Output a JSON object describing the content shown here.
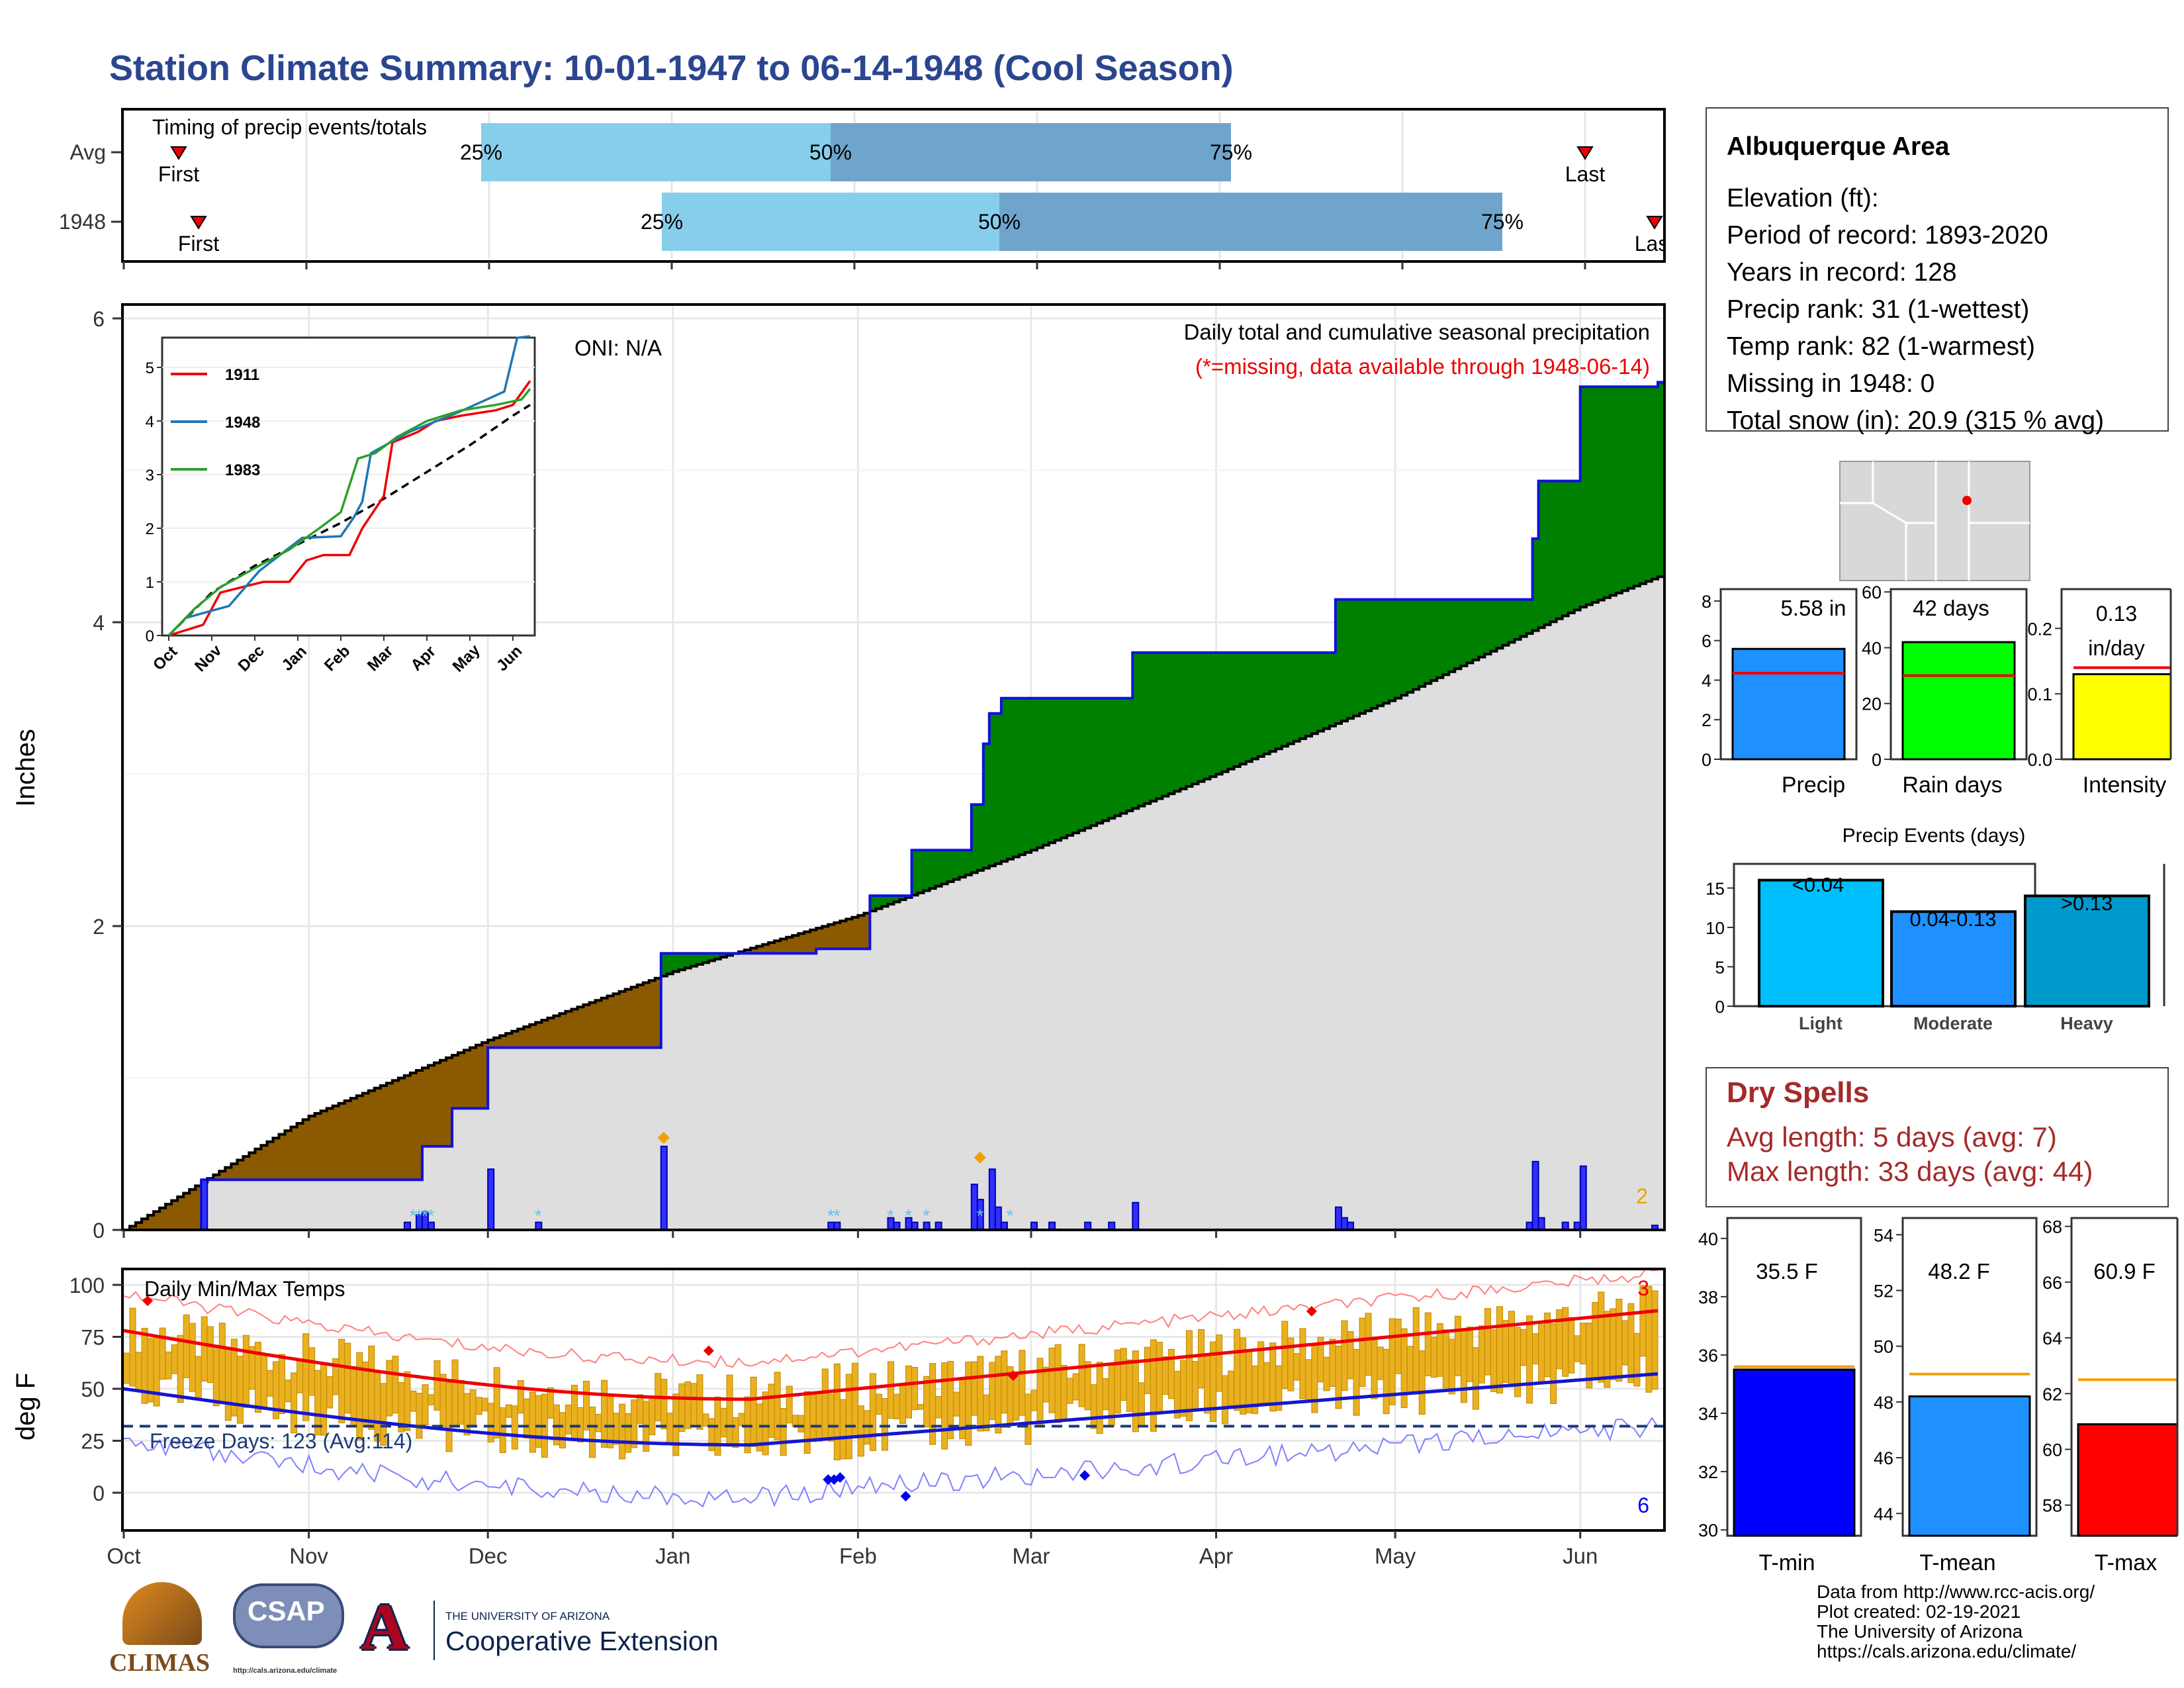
{
  "title": "Station Climate Summary: 10-01-1947 to 06-14-1948 (Cool Season)",
  "colors": {
    "title": "#2b4590",
    "brown": "#8b5a00",
    "green": "#008000",
    "blue": "#1010e0",
    "gray": "#dedede",
    "orange": "#e8a800",
    "red": "#ee0000"
  },
  "timing": {
    "label": "Timing of precip events/totals",
    "rows": [
      {
        "name": "Avg",
        "first": "First",
        "last": "Last",
        "p25": "25%",
        "p50": "50%",
        "p75": "75%"
      },
      {
        "name": "1948",
        "first": "First",
        "last": "Last",
        "p25": "25%",
        "p50": "50%",
        "p75": "75%"
      }
    ]
  },
  "station": {
    "name": "Albuquerque Area",
    "lines": [
      "Elevation (ft):",
      "Period of record: 1893-2020",
      "Years in record: 128",
      "Precip rank: 31 (1-wettest)",
      "Temp rank: 82 (1-warmest)",
      "Missing in 1948: 0",
      "Total snow (in): 20.9 (315 % avg)"
    ]
  },
  "main_chart": {
    "ylabel": "Inches",
    "title": "Daily total and cumulative seasonal precipitation",
    "note": "(*=missing, data available through 1948-06-14)",
    "oni": "ONI: N/A",
    "count_label": "2",
    "y_ticks": [
      "0",
      "2",
      "4",
      "6"
    ],
    "months": [
      "Oct",
      "Nov",
      "Dec",
      "Jan",
      "Feb",
      "Mar",
      "Apr",
      "May",
      "Jun"
    ]
  },
  "inset": {
    "legend": [
      "1911",
      "1948",
      "1983"
    ],
    "y_ticks": [
      "0",
      "1",
      "2",
      "3",
      "4",
      "5"
    ],
    "months": [
      "Oct",
      "Nov",
      "Dec",
      "Jan",
      "Feb",
      "Mar",
      "Apr",
      "May",
      "Jun"
    ]
  },
  "temp_chart": {
    "ylabel": "deg F",
    "title": "Daily Min/Max Temps",
    "freeze": "Freeze Days: 123 (Avg:114)",
    "high_count": "3",
    "low_count": "6",
    "y_ticks": [
      "0",
      "25",
      "50",
      "75",
      "100"
    ]
  },
  "stat_bars": [
    {
      "label": "Precip",
      "value_text": "5.58 in",
      "ticks": [
        "0",
        "2",
        "4",
        "6",
        "8"
      ]
    },
    {
      "label": "Rain days",
      "value_text": "42 days",
      "ticks": [
        "0",
        "20",
        "40",
        "60"
      ]
    },
    {
      "label": "Intensity",
      "value_text_1": "0.13",
      "value_text_2": "in/day",
      "ticks": [
        "0.0",
        "0.1",
        "0.2"
      ]
    }
  ],
  "events": {
    "title": "Precip Events (days)",
    "ticks": [
      "0",
      "5",
      "10",
      "15"
    ],
    "bars": [
      {
        "cat": "Light",
        "text": "<0.04",
        "value": 16
      },
      {
        "cat": "Moderate",
        "text": "0.04-0.13",
        "value": 12
      },
      {
        "cat": "Heavy",
        "text": ">0.13",
        "value": 14
      }
    ]
  },
  "dry_spells": {
    "title": "Dry Spells",
    "avg": "Avg length: 5 days (avg: 7)",
    "max": "Max length: 33 days (avg: 44)"
  },
  "temp_bars": [
    {
      "label": "T-min",
      "value_text": "35.5 F",
      "ticks": [
        "30",
        "32",
        "34",
        "36",
        "38",
        "40"
      ]
    },
    {
      "label": "T-mean",
      "value_text": "48.2 F",
      "ticks": [
        "44",
        "46",
        "48",
        "50",
        "52",
        "54"
      ]
    },
    {
      "label": "T-max",
      "value_text": "60.9 F",
      "ticks": [
        "58",
        "60",
        "62",
        "64",
        "66",
        "68"
      ]
    }
  ],
  "footer": [
    "Data from http://www.rcc-acis.org/",
    "Plot created: 02-19-2021",
    "The University of Arizona",
    "https://cals.arizona.edu/climate/"
  ],
  "logos": {
    "climas": "CLIMAS",
    "csap": "CSAP",
    "csap_url": "http://cals.arizona.edu/climate",
    "ua_small": "THE UNIVERSITY OF ARIZONA",
    "ua_big": "Cooperative Extension",
    "ua_letter": "A"
  },
  "chart_data": [
    {
      "type": "area",
      "title": "Daily total and cumulative seasonal precipitation",
      "ylabel": "Inches",
      "ylim": [
        0,
        6
      ],
      "series": [
        {
          "name": "1948",
          "x": [
            "1947-10-01",
            "1947-10-14",
            "1947-11-20",
            "1947-11-25",
            "1947-12-01",
            "1947-12-30",
            "1948-01-25",
            "1948-02-03",
            "1948-02-10",
            "1948-02-21",
            "1948-02-23",
            "1948-02-25",
            "1948-03-18",
            "1948-04-21",
            "1948-05-24",
            "1948-06-01",
            "1948-06-14"
          ],
          "values": [
            0,
            0.33,
            0.55,
            0.8,
            1.2,
            1.82,
            1.85,
            2.2,
            2.5,
            2.8,
            3.4,
            3.5,
            3.8,
            4.15,
            4.55,
            5.55,
            5.58
          ]
        },
        {
          "name": "Avg",
          "x": [
            "1947-10-01",
            "1947-11-01",
            "1947-12-01",
            "1948-01-01",
            "1948-02-01",
            "1948-03-01",
            "1948-04-01",
            "1948-05-01",
            "1948-06-01",
            "1948-06-14"
          ],
          "values": [
            0,
            0.75,
            1.25,
            1.7,
            2.07,
            2.5,
            3.0,
            3.5,
            4.1,
            4.3
          ]
        }
      ]
    },
    {
      "type": "line",
      "title": "Daily Min/Max Temps",
      "ylabel": "deg F",
      "ylim": [
        -20,
        105
      ],
      "series": [
        {
          "name": "Avg max",
          "x": [
            "Oct",
            "Nov",
            "Dec",
            "Jan",
            "Feb",
            "Mar",
            "Apr",
            "May",
            "Jun"
          ],
          "values": [
            78,
            62,
            50,
            45,
            50,
            57,
            67,
            76,
            86
          ]
        },
        {
          "name": "Avg min",
          "x": [
            "Oct",
            "Nov",
            "Dec",
            "Jan",
            "Feb",
            "Mar",
            "Apr",
            "May",
            "Jun"
          ],
          "values": [
            50,
            38,
            26,
            23,
            27,
            32,
            40,
            48,
            57
          ]
        }
      ]
    },
    {
      "type": "bar",
      "title": "Precip Events (days)",
      "categories": [
        "Light",
        "Moderate",
        "Heavy"
      ],
      "values": [
        16,
        12,
        14
      ],
      "ylim": [
        0,
        17
      ]
    }
  ]
}
